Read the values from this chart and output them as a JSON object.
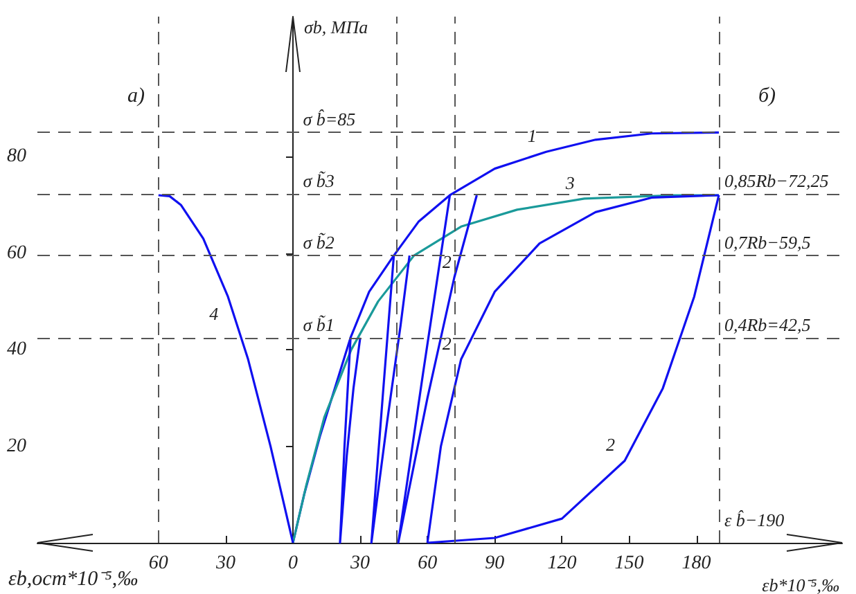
{
  "chart_data": {
    "type": "line",
    "ylabel": "σb, МПа",
    "xlabel": "εb*10⁻⁵,‰",
    "xlim": [
      -114,
      245
    ],
    "ylim": [
      0,
      109
    ],
    "xticks": [
      {
        "value": -60,
        "label": "60"
      },
      {
        "value": -30,
        "label": "30"
      },
      0,
      30,
      60,
      90,
      120,
      150,
      180
    ],
    "yticks": [
      {
        "value": 0,
        "label": null
      },
      20,
      40,
      60,
      80
    ],
    "series": [
      {
        "color": "#1010f0",
        "x": [
          0,
          5,
          12,
          25.7,
          34,
          45,
          56,
          70,
          90,
          113,
          135,
          160,
          190
        ],
        "values": [
          0,
          10,
          22,
          42.5,
          52,
          59.5,
          66.5,
          72,
          77.5,
          81,
          83.5,
          84.8,
          85
        ]
      },
      {
        "color": "#1a9a9a",
        "x": [
          0,
          6,
          14,
          26,
          38,
          54,
          75,
          100,
          130,
          170,
          190
        ],
        "values": [
          0,
          12,
          26,
          40,
          50,
          59.5,
          65.5,
          69,
          71.3,
          72,
          72
        ]
      },
      {
        "color": "#1010f0",
        "x": [
          0,
          -10,
          -20,
          -29,
          -40,
          -50,
          -55,
          -60
        ],
        "values": [
          0,
          20,
          38,
          51,
          63,
          70,
          71.8,
          72
        ]
      },
      {
        "color": "#1010f0",
        "x": [
          25.7,
          23,
          21,
          24,
          27,
          30
        ],
        "values": [
          42.5,
          20,
          0,
          18,
          32,
          42.5
        ]
      },
      {
        "color": "#1010f0",
        "x": [
          45,
          40,
          35,
          42,
          48,
          52
        ],
        "values": [
          59.5,
          30,
          0,
          25,
          45,
          59.5
        ]
      },
      {
        "color": "#1010f0",
        "x": [
          70,
          58,
          47,
          60,
          72,
          82
        ],
        "values": [
          72,
          35,
          0,
          30,
          55,
          72
        ]
      },
      {
        "color": "#1010f0",
        "x": [
          60,
          66,
          75,
          90,
          110,
          135,
          160,
          190
        ],
        "values": [
          0,
          20,
          38,
          52,
          62,
          68.5,
          71.5,
          72
        ]
      },
      {
        "color": "#1010f0",
        "x": [
          190,
          179,
          165,
          148,
          120,
          90,
          60
        ],
        "values": [
          72,
          51,
          32,
          17,
          5,
          1,
          0
        ]
      }
    ],
    "ref_lines": [
      {
        "axis": "y",
        "value": 85,
        "color": "#555555",
        "line_style": "dashed"
      },
      {
        "axis": "y",
        "value": 72.25,
        "color": "#555555",
        "line_style": "dashed"
      },
      {
        "axis": "y",
        "value": 59.5,
        "color": "#555555",
        "line_style": "dashed"
      },
      {
        "axis": "y",
        "value": 42.5,
        "color": "#555555",
        "line_style": "dashed"
      },
      {
        "axis": "x",
        "value": -60,
        "color": "#555555",
        "line_style": "dashed"
      },
      {
        "axis": "x",
        "value": 46,
        "color": "#555555",
        "line_style": "dashed"
      },
      {
        "axis": "x",
        "value": 72,
        "color": "#555555",
        "line_style": "dashed"
      },
      {
        "axis": "x",
        "value": 190,
        "color": "#555555",
        "line_style": "dashed"
      }
    ],
    "annotations": [
      "а)",
      "б)",
      "εb,ост*10⁻⁵,‰",
      {
        "text": "σ b̂=85",
        "x": 2,
        "y": 85
      },
      {
        "text": "σ b̃3",
        "x": 2,
        "y": 72.25
      },
      {
        "text": "σ b̃2",
        "x": 2,
        "y": 59.5
      },
      {
        "text": "σ b̃1",
        "x": 2,
        "y": 42.5
      },
      {
        "text": "0,85Rb−72,25",
        "x": 190,
        "y": 72.25
      },
      {
        "text": "0,7Rb−59,5",
        "x": 190,
        "y": 59.5
      },
      {
        "text": "0,4Rb=42,5",
        "x": 190,
        "y": 42.5
      },
      {
        "text": "ε b̂−190",
        "x": 190,
        "y": 2
      },
      {
        "text": "1",
        "x": 113,
        "y": 81
      },
      {
        "text": "3",
        "x": 130,
        "y": 71.3
      },
      {
        "text": "4",
        "x": -29,
        "y": 51
      },
      {
        "text": "2",
        "x": 75,
        "y": 55
      },
      {
        "text": "2",
        "x": 75,
        "y": 38
      },
      {
        "text": "2",
        "x": 148,
        "y": 17
      }
    ]
  }
}
